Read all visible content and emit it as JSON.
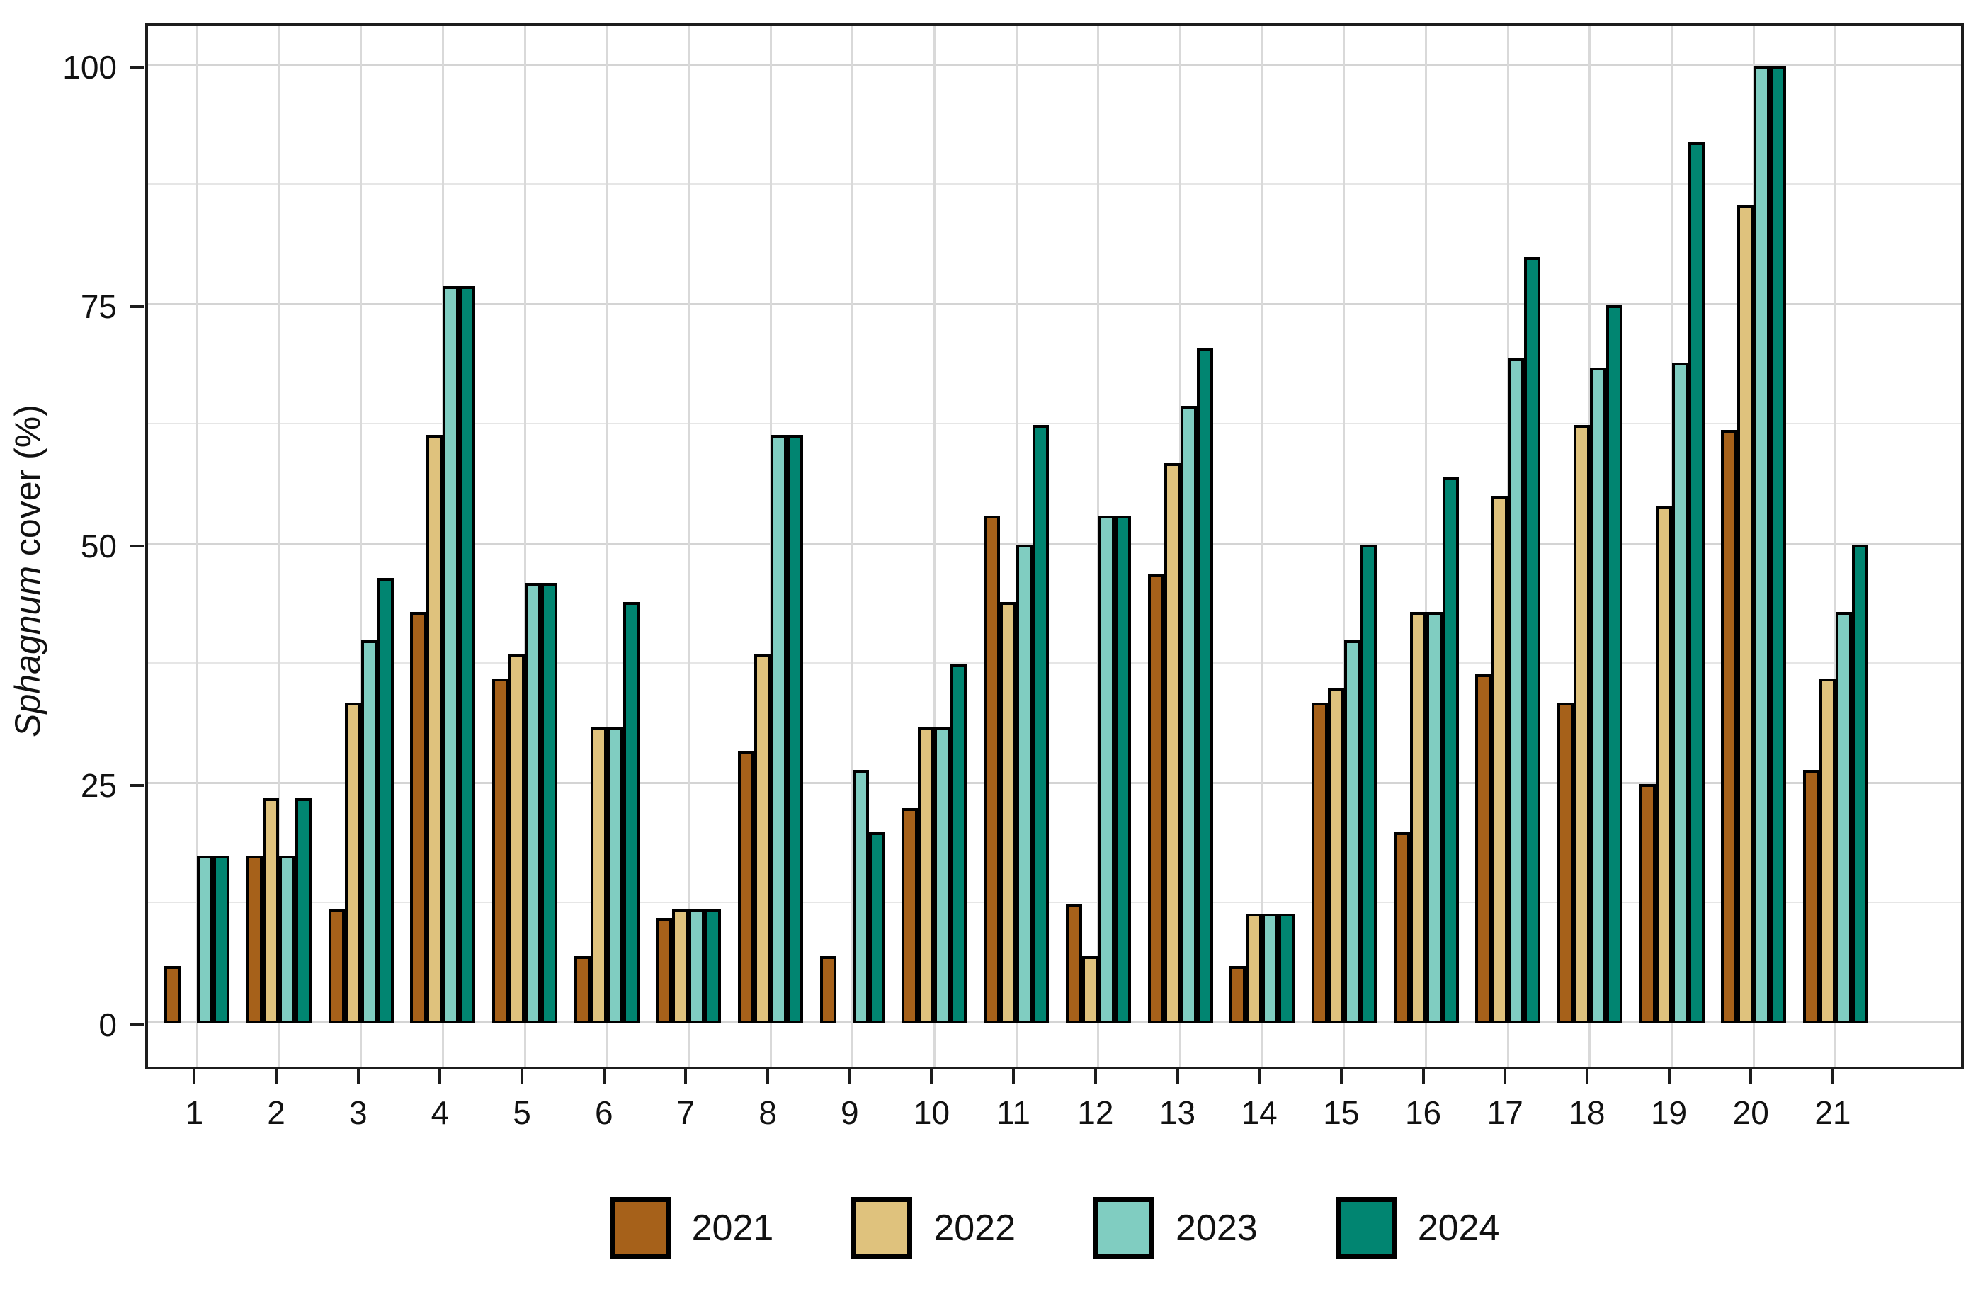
{
  "chart_data": {
    "type": "bar",
    "title": "",
    "ylabel_italic": "Sphagnum",
    "ylabel_rest": " cover (%)",
    "xlabel": "",
    "ylim": [
      0,
      100
    ],
    "y_major_ticks": [
      0,
      25,
      50,
      75,
      100
    ],
    "y_minor_gridlines": [
      12.5,
      37.5,
      62.5,
      87.5
    ],
    "grid": "major-and-minor, light gray on white, full panel border",
    "legend_position": "bottom-center",
    "categories": [
      "1",
      "2",
      "3",
      "4",
      "5",
      "6",
      "7",
      "8",
      "9",
      "10",
      "11",
      "12",
      "13",
      "14",
      "15",
      "16",
      "17",
      "18",
      "19",
      "20",
      "21"
    ],
    "series": [
      {
        "name": "2021",
        "color": "#a6611a",
        "values": [
          6,
          17.5,
          12,
          43,
          36,
          7,
          11,
          28.5,
          7,
          22.5,
          53,
          12.5,
          47,
          6,
          33.5,
          20,
          36.5,
          33.5,
          25,
          62,
          26.5
        ]
      },
      {
        "name": "2022",
        "color": "#dfc27d",
        "values": [
          0,
          23.5,
          33.5,
          61.5,
          38.5,
          31,
          12,
          38.5,
          0,
          31,
          44,
          7,
          58.5,
          11.5,
          35,
          43,
          55,
          62.5,
          54,
          85.5,
          36
        ]
      },
      {
        "name": "2023",
        "color": "#80cdc1",
        "values": [
          17.5,
          17.5,
          40,
          77,
          46,
          31,
          12,
          61.5,
          26.5,
          31,
          50,
          53,
          64.5,
          11.5,
          40,
          43,
          69.5,
          68.5,
          69,
          100,
          43
        ]
      },
      {
        "name": "2024",
        "color": "#018571",
        "values": [
          17.5,
          23.5,
          46.5,
          77,
          46,
          44,
          12,
          61.5,
          20,
          37.5,
          62.5,
          53,
          70.5,
          11.5,
          50,
          57,
          80,
          75,
          92,
          100,
          50
        ]
      }
    ]
  },
  "layout_colors": {
    "background": "#ffffff",
    "panel_border": "#1c1c1c",
    "major_grid": "#d4d4d4",
    "minor_grid": "#e6e6e6",
    "bar_outline": "#000000",
    "text": "#111111"
  }
}
